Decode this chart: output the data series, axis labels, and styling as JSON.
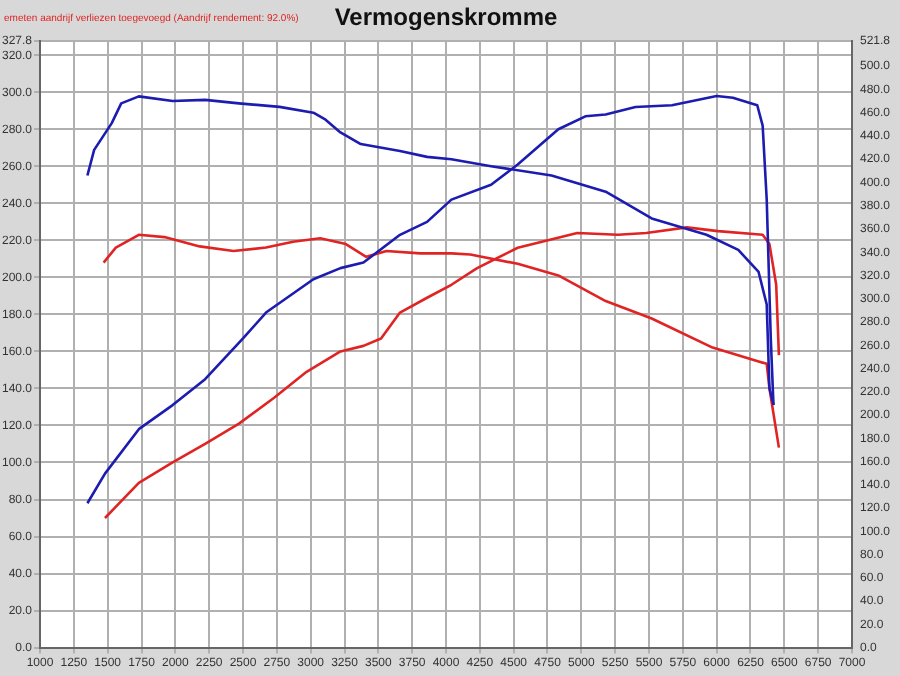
{
  "chart_data": {
    "type": "line",
    "title": "Vermogenskromme",
    "annotations": [
      "emeten aandrijf verliezen toegevoegd (Aandrijf rendement: 92.0%)"
    ],
    "xlim": [
      1000,
      7000
    ],
    "xticks": [
      1000,
      1250,
      1500,
      1750,
      2000,
      2250,
      2500,
      2750,
      3000,
      3250,
      3500,
      3750,
      4000,
      4250,
      4500,
      4750,
      5000,
      5250,
      5500,
      5750,
      6000,
      6250,
      6500,
      6750,
      7000
    ],
    "ylim": [
      0,
      327.8
    ],
    "yticks": [
      {
        "value": 0,
        "label": "0.0"
      },
      {
        "value": 20,
        "label": "20.0"
      },
      {
        "value": 40,
        "label": "40.0"
      },
      {
        "value": 60,
        "label": "60.0"
      },
      {
        "value": 80,
        "label": "80.0"
      },
      {
        "value": 100,
        "label": "100.0"
      },
      {
        "value": 120,
        "label": "120.0"
      },
      {
        "value": 140,
        "label": "140.0"
      },
      {
        "value": 160,
        "label": "160.0"
      },
      {
        "value": 180,
        "label": "180.0"
      },
      {
        "value": 200,
        "label": "200.0"
      },
      {
        "value": 220,
        "label": "220.0"
      },
      {
        "value": 240,
        "label": "240.0"
      },
      {
        "value": 260,
        "label": "260.0"
      },
      {
        "value": 280,
        "label": "280.0"
      },
      {
        "value": 300,
        "label": "300.0"
      },
      {
        "value": 320,
        "label": "320.0"
      },
      327.8
    ],
    "y2lim": [
      0,
      521.8
    ],
    "y2ticks": [
      {
        "value": 0,
        "label": "0.0"
      },
      {
        "value": 20,
        "label": "20.0"
      },
      {
        "value": 40,
        "label": "40.0"
      },
      {
        "value": 60,
        "label": "60.0"
      },
      {
        "value": 80,
        "label": "80.0"
      },
      {
        "value": 100,
        "label": "100.0"
      },
      {
        "value": 120,
        "label": "120.0"
      },
      {
        "value": 140,
        "label": "140.0"
      },
      {
        "value": 160,
        "label": "160.0"
      },
      {
        "value": 180,
        "label": "180.0"
      },
      {
        "value": 200,
        "label": "200.0"
      },
      {
        "value": 220,
        "label": "220.0"
      },
      {
        "value": 240,
        "label": "240.0"
      },
      {
        "value": 260,
        "label": "260.0"
      },
      {
        "value": 280,
        "label": "280.0"
      },
      {
        "value": 300,
        "label": "300.0"
      },
      {
        "value": 320,
        "label": "320.0"
      },
      {
        "value": 340,
        "label": "340.0"
      },
      {
        "value": 360,
        "label": "360.0"
      },
      {
        "value": 380,
        "label": "380.0"
      },
      {
        "value": 400,
        "label": "400.0"
      },
      {
        "value": 420,
        "label": "420.0"
      },
      {
        "value": 440,
        "label": "440.0"
      },
      {
        "value": 460,
        "label": "460.0"
      },
      {
        "value": 480,
        "label": "480.0"
      },
      {
        "value": 500,
        "label": "500.0"
      },
      521.8
    ],
    "grid": true,
    "series": [
      {
        "color": "#1c1cb0",
        "axis": "y",
        "x": [
          1350,
          1480,
          1730,
          1980,
          2220,
          2500,
          2670,
          3020,
          3220,
          3390,
          3660,
          3860,
          4040,
          4333,
          4530,
          4830,
          5030,
          5180,
          5400,
          5670,
          6000,
          6120,
          6300,
          6340,
          6370,
          6400,
          6420
        ],
        "values": [
          78,
          94,
          118,
          131,
          145,
          167,
          181,
          199,
          205,
          208,
          223,
          230,
          242,
          250,
          261,
          280,
          287,
          288,
          292,
          293,
          298,
          297,
          293,
          282,
          242,
          167,
          131
        ]
      },
      {
        "color": "#1c1cb0",
        "axis": "y2",
        "x": [
          1350,
          1400,
          1530,
          1600,
          1730,
          1980,
          2220,
          2470,
          2770,
          3020,
          3110,
          3220,
          3370,
          3660,
          3860,
          4040,
          4333,
          4780,
          5180,
          5520,
          5925,
          6160,
          6310,
          6370,
          6390,
          6420
        ],
        "values": [
          406,
          428,
          451,
          468,
          474,
          470,
          471,
          468,
          465,
          460,
          454,
          443,
          433,
          427,
          422,
          420,
          414,
          406,
          392,
          369,
          355,
          342,
          323,
          295,
          223,
          209
        ]
      },
      {
        "color": "#e02424",
        "axis": "y",
        "x": [
          1480,
          1730,
          1980,
          2220,
          2470,
          2730,
          2970,
          3220,
          3390,
          3520,
          3660,
          3860,
          4040,
          4230,
          4530,
          4970,
          5270,
          5480,
          5780,
          6010,
          6340,
          6390,
          6440,
          6460
        ],
        "values": [
          70,
          89,
          100,
          110,
          121,
          135,
          149,
          160,
          163,
          167,
          181,
          189,
          196,
          205,
          216,
          224,
          223,
          224,
          227,
          225,
          223,
          218,
          196,
          158
        ]
      },
      {
        "color": "#e02424",
        "axis": "y2",
        "x": [
          1470,
          1560,
          1730,
          1920,
          2180,
          2430,
          2670,
          2870,
          3070,
          3260,
          3410,
          3560,
          3810,
          4040,
          4180,
          4530,
          4830,
          5180,
          5520,
          5970,
          6370,
          6390,
          6460
        ],
        "values": [
          331,
          344,
          355,
          353,
          345,
          341,
          344,
          349,
          352,
          347,
          336,
          341,
          339,
          339,
          338,
          330,
          320,
          298,
          283,
          258,
          244,
          223,
          172
        ]
      }
    ]
  }
}
